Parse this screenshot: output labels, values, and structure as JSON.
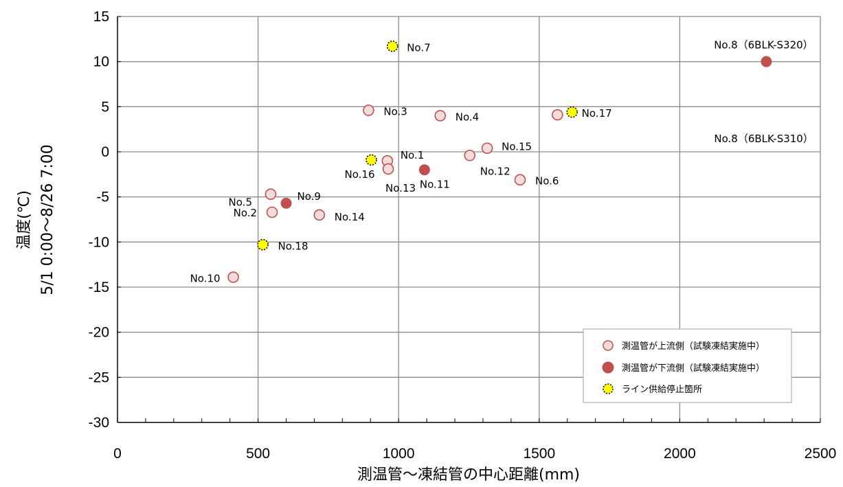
{
  "chart_data": {
    "type": "scatter",
    "title": "",
    "xlabel": "測温管～凍結管の中心距離(mm)",
    "ylabel_line1": "温度(℃)",
    "ylabel_line2": "5/1  0:00～8/26  7:00",
    "xlim": [
      0,
      2500
    ],
    "ylim": [
      -30,
      15
    ],
    "x_ticks": [
      0,
      500,
      1000,
      1500,
      2000,
      2500
    ],
    "y_ticks": [
      15,
      10,
      5,
      0,
      -5,
      -10,
      -15,
      -20,
      -25,
      -30
    ],
    "grid": true,
    "legend_position": "bottom-right",
    "series": [
      {
        "name": "測温管が上流側（試験凍結実施中）",
        "marker": "open-circle",
        "color": "#c0504d",
        "fill": "#f2dcdb",
        "points": [
          {
            "label": "No.1",
            "x": 960,
            "y": -1.0
          },
          {
            "label": "No.2",
            "x": 550,
            "y": -6.7
          },
          {
            "label": "No.3",
            "x": 893,
            "y": 4.6
          },
          {
            "label": "No.4",
            "x": 1148,
            "y": 4.0
          },
          {
            "label": "No.5",
            "x": 545,
            "y": -4.7
          },
          {
            "label": "No.6",
            "x": 1432,
            "y": -3.1
          },
          {
            "label": "No.8（6BLK-S310）",
            "x": 1565,
            "y": 4.1
          },
          {
            "label": "No.10",
            "x": 412,
            "y": -13.9
          },
          {
            "label": "No.12",
            "x": 1253,
            "y": -0.4
          },
          {
            "label": "No.13",
            "x": 963,
            "y": -1.9
          },
          {
            "label": "No.14",
            "x": 718,
            "y": -7.0
          },
          {
            "label": "No.15",
            "x": 1315,
            "y": 0.4
          }
        ]
      },
      {
        "name": "測温管が下流側（試験凍結実施中）",
        "marker": "filled-circle",
        "color": "#c0504d",
        "fill": "#c0504d",
        "points": [
          {
            "label": "No.8（6BLK-S320）",
            "x": 2308,
            "y": 10.0
          },
          {
            "label": "No.9",
            "x": 600,
            "y": -5.7
          },
          {
            "label": "No.11",
            "x": 1092,
            "y": -2.0
          }
        ]
      },
      {
        "name": "ライン供給停止箇所",
        "marker": "dotted-circle",
        "color": "#000000",
        "fill": "#ffff00",
        "points": [
          {
            "label": "No.7",
            "x": 978,
            "y": 11.7
          },
          {
            "label": "No.16",
            "x": 903,
            "y": -0.9
          },
          {
            "label": "No.17",
            "x": 1617,
            "y": 4.4
          },
          {
            "label": "No.18",
            "x": 517,
            "y": -10.3
          }
        ]
      }
    ]
  }
}
